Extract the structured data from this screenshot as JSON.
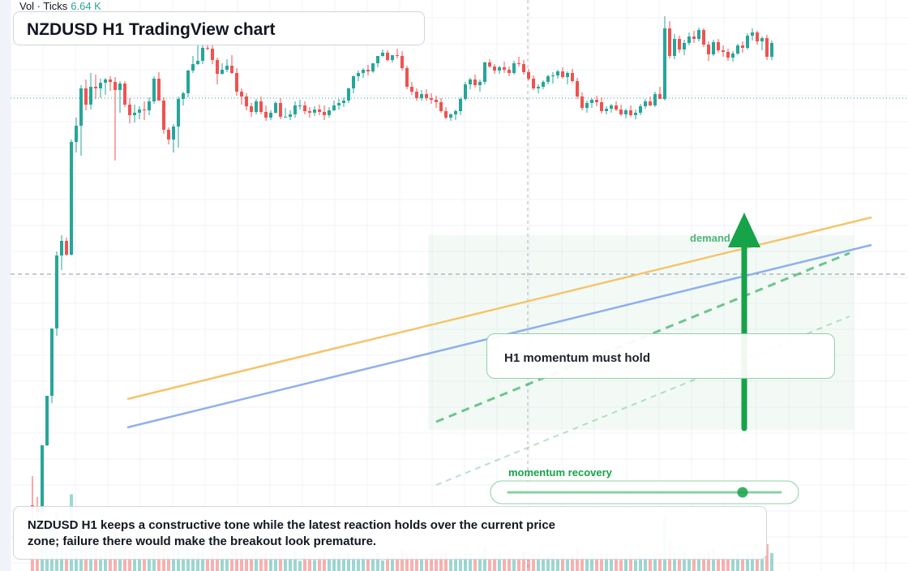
{
  "hud": {
    "label": "Vol · Ticks",
    "value": "6.64 K"
  },
  "title": "NZDUSD H1 TradingView chart",
  "callout": "H1 momentum must hold",
  "zone_label": "demand side",
  "slider_label": "momentum recovery",
  "note": "NZDUSD H1 keeps a constructive tone while the latest reaction holds over the current price zone; failure there would make the breakout look premature.",
  "colors": {
    "up": "#26a69a",
    "down": "#ef5350",
    "accent": "#16a34a",
    "line_orange": "#f5c46a",
    "line_blue": "#8fb0ec"
  },
  "slider": {
    "level": 0.86
  },
  "chart_data": {
    "type": "candlestick",
    "instrument": "NZDUSD",
    "timeframe": "H1",
    "candles": [
      [
        -0.63,
        -0.27,
        -1.0,
        -0.66
      ],
      [
        -0.66,
        -0.53,
        -0.81,
        -0.71
      ],
      [
        -0.71,
        0.11,
        -0.76,
        0.11
      ],
      [
        0.11,
        0.72,
        0.1,
        0.72
      ],
      [
        0.72,
        1.55,
        0.63,
        1.55
      ],
      [
        1.55,
        2.5,
        1.46,
        2.45
      ],
      [
        2.45,
        2.7,
        2.27,
        2.63
      ],
      [
        2.63,
        2.67,
        2.45,
        2.46
      ],
      [
        2.46,
        3.88,
        2.45,
        3.85
      ],
      [
        3.85,
        4.15,
        3.72,
        4.05
      ],
      [
        4.05,
        4.55,
        3.68,
        4.51
      ],
      [
        4.51,
        4.62,
        4.24,
        4.31
      ],
      [
        4.31,
        4.7,
        4.25,
        4.53
      ],
      [
        4.53,
        4.68,
        4.38,
        4.51
      ],
      [
        4.51,
        4.63,
        4.39,
        4.58
      ],
      [
        4.58,
        4.64,
        4.43,
        4.62
      ],
      [
        4.62,
        4.66,
        4.48,
        4.59
      ],
      [
        4.59,
        4.65,
        3.62,
        4.49
      ],
      [
        4.49,
        4.6,
        4.21,
        4.57
      ],
      [
        4.57,
        4.6,
        4.28,
        4.31
      ],
      [
        4.31,
        4.39,
        4.08,
        4.18
      ],
      [
        4.18,
        4.31,
        4.09,
        4.21
      ],
      [
        4.21,
        4.29,
        4.13,
        4.25
      ],
      [
        4.25,
        4.35,
        4.12,
        4.24
      ],
      [
        4.24,
        4.4,
        4.18,
        4.35
      ],
      [
        4.35,
        4.66,
        4.32,
        4.63
      ],
      [
        4.63,
        4.71,
        4.36,
        4.36
      ],
      [
        4.36,
        4.4,
        3.95,
        4.0
      ],
      [
        4.0,
        4.03,
        3.82,
        3.88
      ],
      [
        3.88,
        4.07,
        3.72,
        4.04
      ],
      [
        4.04,
        4.41,
        3.78,
        4.38
      ],
      [
        4.38,
        4.47,
        4.3,
        4.45
      ],
      [
        4.45,
        4.74,
        4.4,
        4.73
      ],
      [
        4.73,
        4.91,
        4.7,
        4.81
      ],
      [
        4.81,
        5.04,
        4.8,
        4.85
      ],
      [
        4.85,
        5.12,
        4.81,
        5.01
      ],
      [
        5.01,
        5.16,
        4.98,
        5.0
      ],
      [
        5.0,
        5.05,
        4.81,
        4.86
      ],
      [
        4.86,
        4.89,
        4.56,
        4.69
      ],
      [
        4.69,
        4.82,
        4.68,
        4.74
      ],
      [
        4.74,
        4.87,
        4.71,
        4.79
      ],
      [
        4.79,
        4.92,
        4.69,
        4.7
      ],
      [
        4.7,
        4.76,
        4.42,
        4.47
      ],
      [
        4.47,
        4.51,
        4.31,
        4.41
      ],
      [
        4.41,
        4.45,
        4.24,
        4.29
      ],
      [
        4.29,
        4.33,
        4.16,
        4.22
      ],
      [
        4.22,
        4.38,
        4.19,
        4.35
      ],
      [
        4.35,
        4.41,
        4.19,
        4.22
      ],
      [
        4.22,
        4.3,
        4.11,
        4.15
      ],
      [
        4.15,
        4.24,
        4.12,
        4.21
      ],
      [
        4.21,
        4.35,
        4.2,
        4.33
      ],
      [
        4.33,
        4.39,
        4.13,
        4.16
      ],
      [
        4.16,
        4.27,
        4.15,
        4.16
      ],
      [
        4.16,
        4.24,
        4.12,
        4.19
      ],
      [
        4.19,
        4.35,
        4.15,
        4.3
      ],
      [
        4.3,
        4.37,
        4.25,
        4.3
      ],
      [
        4.3,
        4.35,
        4.19,
        4.23
      ],
      [
        4.23,
        4.28,
        4.15,
        4.21
      ],
      [
        4.21,
        4.29,
        4.17,
        4.25
      ],
      [
        4.25,
        4.31,
        4.18,
        4.22
      ],
      [
        4.22,
        4.3,
        4.12,
        4.18
      ],
      [
        4.18,
        4.28,
        4.15,
        4.24
      ],
      [
        4.24,
        4.36,
        4.23,
        4.3
      ],
      [
        4.3,
        4.38,
        4.25,
        4.33
      ],
      [
        4.33,
        4.4,
        4.28,
        4.36
      ],
      [
        4.36,
        4.52,
        4.33,
        4.51
      ],
      [
        4.51,
        4.67,
        4.45,
        4.66
      ],
      [
        4.66,
        4.73,
        4.6,
        4.7
      ],
      [
        4.7,
        4.76,
        4.64,
        4.74
      ],
      [
        4.74,
        4.8,
        4.67,
        4.72
      ],
      [
        4.72,
        4.82,
        4.7,
        4.82
      ],
      [
        4.82,
        4.91,
        4.77,
        4.91
      ],
      [
        4.91,
        4.99,
        4.9,
        4.95
      ],
      [
        4.95,
        4.98,
        4.84,
        4.86
      ],
      [
        4.86,
        4.92,
        4.83,
        4.92
      ],
      [
        4.92,
        5.0,
        4.88,
        4.91
      ],
      [
        4.91,
        4.97,
        4.73,
        4.76
      ],
      [
        4.76,
        4.79,
        4.5,
        4.53
      ],
      [
        4.53,
        4.59,
        4.43,
        4.47
      ],
      [
        4.47,
        4.51,
        4.36,
        4.39
      ],
      [
        4.39,
        4.49,
        4.36,
        4.44
      ],
      [
        4.44,
        4.5,
        4.36,
        4.39
      ],
      [
        4.39,
        4.45,
        4.32,
        4.37
      ],
      [
        4.37,
        4.42,
        4.27,
        4.34
      ],
      [
        4.34,
        4.39,
        4.21,
        4.23
      ],
      [
        4.23,
        4.28,
        4.13,
        4.15
      ],
      [
        4.15,
        4.2,
        4.11,
        4.19
      ],
      [
        4.19,
        4.25,
        4.12,
        4.23
      ],
      [
        4.23,
        4.4,
        4.18,
        4.38
      ],
      [
        4.38,
        4.59,
        4.36,
        4.56
      ],
      [
        4.56,
        4.64,
        4.5,
        4.62
      ],
      [
        4.62,
        4.68,
        4.52,
        4.55
      ],
      [
        4.55,
        4.62,
        4.47,
        4.59
      ],
      [
        4.59,
        4.84,
        4.56,
        4.83
      ],
      [
        4.83,
        4.87,
        4.76,
        4.78
      ],
      [
        4.78,
        4.81,
        4.69,
        4.73
      ],
      [
        4.73,
        4.79,
        4.69,
        4.77
      ],
      [
        4.77,
        4.84,
        4.7,
        4.74
      ],
      [
        4.74,
        4.78,
        4.66,
        4.7
      ],
      [
        4.7,
        4.85,
        4.68,
        4.82
      ],
      [
        4.82,
        4.9,
        4.78,
        4.81
      ],
      [
        4.81,
        4.86,
        4.68,
        4.71
      ],
      [
        4.71,
        4.75,
        4.61,
        4.63
      ],
      [
        4.63,
        4.67,
        4.49,
        4.51
      ],
      [
        4.51,
        4.56,
        4.45,
        4.53
      ],
      [
        4.53,
        4.61,
        4.5,
        4.59
      ],
      [
        4.59,
        4.68,
        4.56,
        4.66
      ],
      [
        4.66,
        4.71,
        4.57,
        4.67
      ],
      [
        4.67,
        4.74,
        4.63,
        4.72
      ],
      [
        4.72,
        4.77,
        4.63,
        4.65
      ],
      [
        4.65,
        4.72,
        4.56,
        4.7
      ],
      [
        4.7,
        4.75,
        4.58,
        4.6
      ],
      [
        4.6,
        4.64,
        4.38,
        4.41
      ],
      [
        4.41,
        4.46,
        4.24,
        4.27
      ],
      [
        4.27,
        4.36,
        4.21,
        4.33
      ],
      [
        4.33,
        4.39,
        4.27,
        4.37
      ],
      [
        4.37,
        4.42,
        4.29,
        4.34
      ],
      [
        4.34,
        4.4,
        4.2,
        4.23
      ],
      [
        4.23,
        4.29,
        4.19,
        4.26
      ],
      [
        4.26,
        4.32,
        4.21,
        4.3
      ],
      [
        4.3,
        4.35,
        4.23,
        4.25
      ],
      [
        4.25,
        4.31,
        4.17,
        4.19
      ],
      [
        4.19,
        4.26,
        4.14,
        4.24
      ],
      [
        4.24,
        4.3,
        4.16,
        4.18
      ],
      [
        4.18,
        4.25,
        4.13,
        4.21
      ],
      [
        4.21,
        4.32,
        4.18,
        4.29
      ],
      [
        4.29,
        4.38,
        4.26,
        4.35
      ],
      [
        4.35,
        4.41,
        4.29,
        4.3
      ],
      [
        4.3,
        4.47,
        4.28,
        4.44
      ],
      [
        4.44,
        4.53,
        4.41,
        4.38
      ],
      [
        4.38,
        5.4,
        4.36,
        5.25
      ],
      [
        5.25,
        5.34,
        4.88,
        4.91
      ],
      [
        4.91,
        5.18,
        4.87,
        5.12
      ],
      [
        5.12,
        5.16,
        4.95,
        4.99
      ],
      [
        4.99,
        5.11,
        4.92,
        5.07
      ],
      [
        5.07,
        5.2,
        5.04,
        5.15
      ],
      [
        5.15,
        5.22,
        5.07,
        5.12
      ],
      [
        5.12,
        5.26,
        5.09,
        5.23
      ],
      [
        5.23,
        5.25,
        5.02,
        5.05
      ],
      [
        5.05,
        5.09,
        4.85,
        4.93
      ],
      [
        4.93,
        5.11,
        4.91,
        5.08
      ],
      [
        5.08,
        5.12,
        4.95,
        4.98
      ],
      [
        4.98,
        5.04,
        4.9,
        4.96
      ],
      [
        4.96,
        5.0,
        4.85,
        4.89
      ],
      [
        4.89,
        4.97,
        4.84,
        4.94
      ],
      [
        4.94,
        5.06,
        4.92,
        5.04
      ],
      [
        5.04,
        5.09,
        4.95,
        5.01
      ],
      [
        5.01,
        5.19,
        4.99,
        5.16
      ],
      [
        5.16,
        5.25,
        5.1,
        5.2
      ],
      [
        5.2,
        5.22,
        5.05,
        5.09
      ],
      [
        5.09,
        5.15,
        4.98,
        5.13
      ],
      [
        5.13,
        5.17,
        4.86,
        4.9
      ],
      [
        4.9,
        5.1,
        4.86,
        5.07
      ]
    ],
    "volume_scale": "Ticks",
    "annotations": [
      "H1 momentum must hold",
      "demand side",
      "momentum recovery"
    ],
    "grid": true
  }
}
